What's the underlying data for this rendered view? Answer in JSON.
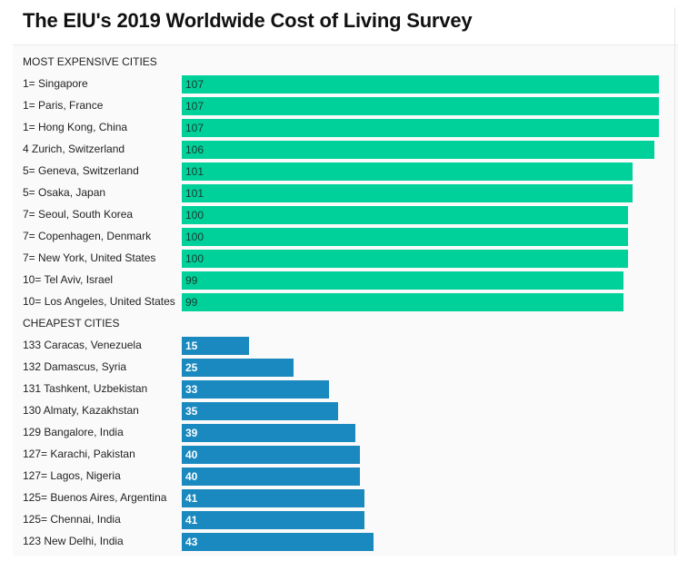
{
  "chart_data": {
    "type": "bar",
    "orientation": "horizontal",
    "title": "The EIU's 2019 Worldwide Cost of Living Survey",
    "colors": {
      "expensive": "#00d19a",
      "cheap": "#1a89bf"
    },
    "groups": [
      {
        "label": "MOST EXPENSIVE CITIES",
        "key": "expensive",
        "categories": [
          "1= Singapore",
          "1= Paris, France",
          "1= Hong Kong, China",
          "4 Zurich, Switzerland",
          "5= Geneva, Switzerland",
          "5= Osaka, Japan",
          "7= Seoul, South Korea",
          "7= Copenhagen, Denmark",
          "7= New York, United States",
          "10= Tel Aviv, Israel",
          "10= Los Angeles, United States"
        ],
        "values": [
          107,
          107,
          107,
          106,
          101,
          101,
          100,
          100,
          100,
          99,
          99
        ]
      },
      {
        "label": "CHEAPEST CITIES",
        "key": "cheap",
        "categories": [
          "133 Caracas, Venezuela",
          "132 Damascus, Syria",
          "131 Tashkent, Uzbekistan",
          "130 Almaty, Kazakhstan",
          "129 Bangalore, India",
          "127= Karachi, Pakistan",
          "127= Lagos, Nigeria",
          "125= Buenos Aires, Argentina",
          "125= Chennai, India",
          "123 New Delhi, India"
        ],
        "values": [
          15,
          25,
          33,
          35,
          39,
          40,
          40,
          41,
          41,
          43
        ]
      }
    ],
    "xlim": [
      0,
      107
    ],
    "grid": false,
    "legend": "none"
  }
}
